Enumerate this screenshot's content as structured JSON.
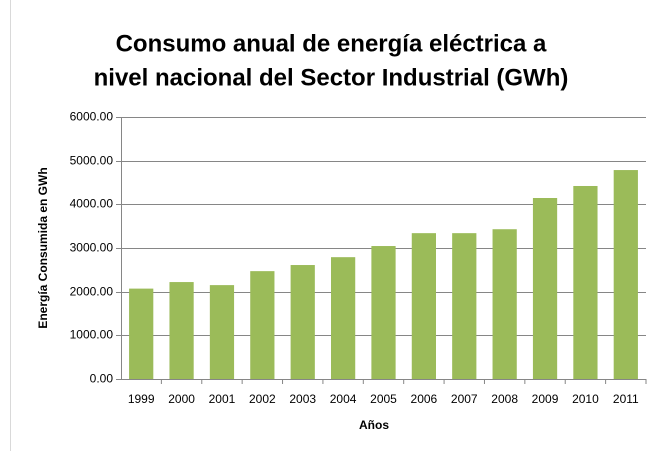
{
  "chart_data": {
    "type": "bar",
    "title": [
      "Consumo anual de energía eléctrica a",
      "nivel nacional del Sector Industrial (GWh)"
    ],
    "x_label": "Años",
    "y_label": "Energía Consumida en GWh",
    "categories": [
      "1999",
      "2000",
      "2001",
      "2002",
      "2003",
      "2004",
      "2005",
      "2006",
      "2007",
      "2008",
      "2009",
      "2010",
      "2011"
    ],
    "values": [
      2070,
      2220,
      2150,
      2470,
      2610,
      2790,
      3045,
      3340,
      3340,
      3430,
      4145,
      4420,
      4785
    ],
    "color": "#9bbb59",
    "ylim": [
      0,
      6000
    ],
    "yticks": [
      {
        "value": 0,
        "label": "0.00"
      },
      {
        "value": 1000,
        "label": "1000.00"
      },
      {
        "value": 2000,
        "label": "2000.00"
      },
      {
        "value": 3000,
        "label": "3000.00"
      },
      {
        "value": 4000,
        "label": "4000.00"
      },
      {
        "value": 5000,
        "label": "5000.00"
      },
      {
        "value": 6000,
        "label": "6000.00"
      }
    ],
    "grid": true
  }
}
